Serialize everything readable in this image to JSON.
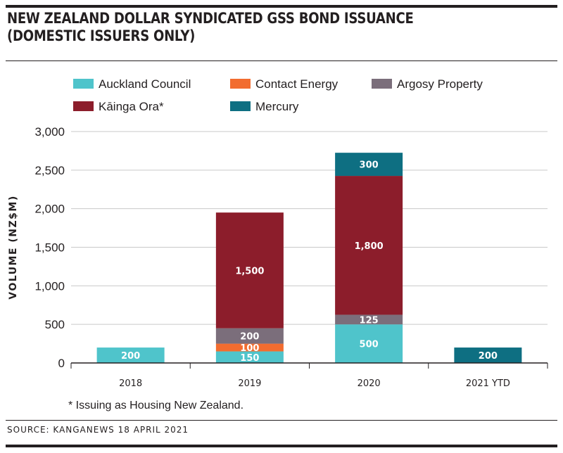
{
  "header": {
    "title": "NEW ZEALAND DOLLAR SYNDICATED GSS BOND ISSUANCE\n(DOMESTIC ISSUERS ONLY)"
  },
  "footnote": "* Issuing as Housing New Zealand.",
  "source": "SOURCE: KANGANEWS 18 APRIL 2021",
  "colors": {
    "Auckland Council": "#4fc4cb",
    "Contact Energy": "#f26c2f",
    "Argosy Property": "#7b6e7b",
    "Kāinga Ora*": "#8c1d2b",
    "Mercury": "#0e6f82"
  },
  "chart_data": {
    "type": "bar",
    "stacked": true,
    "categories": [
      "2018",
      "2019",
      "2020",
      "2021 YTD"
    ],
    "ylabel": "VOLUME (NZ$M)",
    "xlabel": "",
    "ylim": [
      0,
      3000
    ],
    "yticks": [
      "0",
      "500",
      "1,000",
      "1,500",
      "2,000",
      "2,500",
      "3,000"
    ],
    "legend_position": "top",
    "series": [
      {
        "name": "Auckland Council",
        "values": [
          200,
          150,
          500,
          0
        ],
        "labels": [
          "200",
          "150",
          "500",
          ""
        ]
      },
      {
        "name": "Contact Energy",
        "values": [
          0,
          100,
          0,
          0
        ],
        "labels": [
          "",
          "100",
          "",
          ""
        ]
      },
      {
        "name": "Argosy Property",
        "values": [
          0,
          200,
          125,
          0
        ],
        "labels": [
          "",
          "200",
          "125",
          ""
        ]
      },
      {
        "name": "Kāinga Ora*",
        "values": [
          0,
          1500,
          1800,
          0
        ],
        "labels": [
          "",
          "1,500",
          "1,800",
          ""
        ]
      },
      {
        "name": "Mercury",
        "values": [
          0,
          0,
          300,
          200
        ],
        "labels": [
          "",
          "",
          "300",
          "200"
        ]
      }
    ]
  }
}
